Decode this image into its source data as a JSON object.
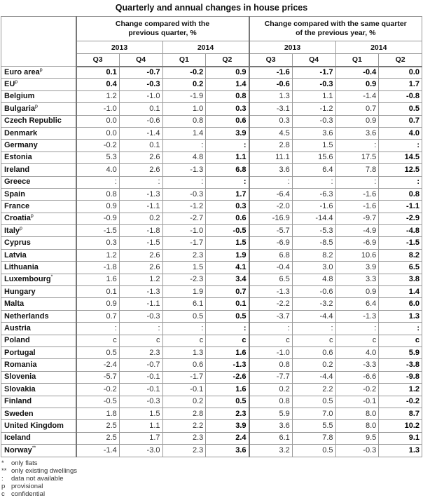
{
  "title": "Quarterly and annual changes in house prices",
  "headers": {
    "group1": "Change compared with the previous quarter, %",
    "group2": "Change compared with the same quarter of the previous year, %",
    "years": [
      "2013",
      "2014",
      "2013",
      "2014"
    ],
    "quarters": [
      "Q3",
      "Q4",
      "Q1",
      "Q2",
      "Q3",
      "Q4",
      "Q1",
      "Q2"
    ]
  },
  "rows": [
    {
      "country": "Euro area",
      "sup": "p",
      "bold": true,
      "values": [
        "0.1",
        "-0.7",
        "-0.2",
        "0.9",
        "-1.6",
        "-1.7",
        "-0.4",
        "0.0"
      ]
    },
    {
      "country": "EU",
      "sup": "p",
      "bold": true,
      "values": [
        "0.4",
        "-0.3",
        "0.2",
        "1.4",
        "-0.6",
        "-0.3",
        "0.9",
        "1.7"
      ]
    },
    {
      "country": "Belgium",
      "sup": "",
      "values": [
        "1.2",
        "-1.0",
        "-1.9",
        "0.8",
        "1.3",
        "1.1",
        "-1.4",
        "-0.8"
      ]
    },
    {
      "country": "Bulgaria",
      "sup": "p",
      "values": [
        "-1.0",
        "0.1",
        "1.0",
        "0.3",
        "-3.1",
        "-1.2",
        "0.7",
        "0.5"
      ]
    },
    {
      "country": "Czech Republic",
      "sup": "",
      "values": [
        "0.0",
        "-0.6",
        "0.8",
        "0.6",
        "0.3",
        "-0.3",
        "0.9",
        "0.7"
      ]
    },
    {
      "country": "Denmark",
      "sup": "",
      "values": [
        "0.0",
        "-1.4",
        "1.4",
        "3.9",
        "4.5",
        "3.6",
        "3.6",
        "4.0"
      ]
    },
    {
      "country": "Germany",
      "sup": "",
      "values": [
        "-0.2",
        "0.1",
        ":",
        ":",
        "2.8",
        "1.5",
        ":",
        ":"
      ]
    },
    {
      "country": "Estonia",
      "sup": "",
      "values": [
        "5.3",
        "2.6",
        "4.8",
        "1.1",
        "11.1",
        "15.6",
        "17.5",
        "14.5"
      ]
    },
    {
      "country": "Ireland",
      "sup": "",
      "values": [
        "4.0",
        "2.6",
        "-1.3",
        "6.8",
        "3.6",
        "6.4",
        "7.8",
        "12.5"
      ]
    },
    {
      "country": "Greece",
      "sup": "",
      "values": [
        ":",
        ":",
        ":",
        ":",
        ":",
        ":",
        ":",
        ":"
      ]
    },
    {
      "country": "Spain",
      "sup": "",
      "values": [
        "0.8",
        "-1.3",
        "-0.3",
        "1.7",
        "-6.4",
        "-6.3",
        "-1.6",
        "0.8"
      ]
    },
    {
      "country": "France",
      "sup": "",
      "values": [
        "0.9",
        "-1.1",
        "-1.2",
        "0.3",
        "-2.0",
        "-1.6",
        "-1.6",
        "-1.1"
      ]
    },
    {
      "country": "Croatia",
      "sup": "p",
      "values": [
        "-0.9",
        "0.2",
        "-2.7",
        "0.6",
        "-16.9",
        "-14.4",
        "-9.7",
        "-2.9"
      ]
    },
    {
      "country": "Italy",
      "sup": "p",
      "values": [
        "-1.5",
        "-1.8",
        "-1.0",
        "-0.5",
        "-5.7",
        "-5.3",
        "-4.9",
        "-4.8"
      ]
    },
    {
      "country": "Cyprus",
      "sup": "",
      "values": [
        "0.3",
        "-1.5",
        "-1.7",
        "1.5",
        "-6.9",
        "-8.5",
        "-6.9",
        "-1.5"
      ]
    },
    {
      "country": "Latvia",
      "sup": "",
      "values": [
        "1.2",
        "2.6",
        "2.3",
        "1.9",
        "6.8",
        "8.2",
        "10.6",
        "8.2"
      ]
    },
    {
      "country": "Lithuania",
      "sup": "",
      "values": [
        "-1.8",
        "2.6",
        "1.5",
        "4.1",
        "-0.4",
        "3.0",
        "3.9",
        "6.5"
      ]
    },
    {
      "country": "Luxembourg",
      "sup": "*",
      "values": [
        "1.6",
        "1.2",
        "-2.3",
        "3.4",
        "6.5",
        "4.8",
        "3.3",
        "3.8"
      ]
    },
    {
      "country": "Hungary",
      "sup": "",
      "values": [
        "0.1",
        "-1.3",
        "1.9",
        "0.7",
        "-1.3",
        "-0.6",
        "0.9",
        "1.4"
      ]
    },
    {
      "country": "Malta",
      "sup": "",
      "values": [
        "0.9",
        "-1.1",
        "6.1",
        "0.1",
        "-2.2",
        "-3.2",
        "6.4",
        "6.0"
      ]
    },
    {
      "country": "Netherlands",
      "sup": "",
      "values": [
        "0.7",
        "-0.3",
        "0.5",
        "0.5",
        "-3.7",
        "-4.4",
        "-1.3",
        "1.3"
      ]
    },
    {
      "country": "Austria",
      "sup": "",
      "values": [
        ":",
        ":",
        ":",
        ":",
        ":",
        ":",
        ":",
        ":"
      ]
    },
    {
      "country": "Poland",
      "sup": "",
      "values": [
        "c",
        "c",
        "c",
        "c",
        "c",
        "c",
        "c",
        "c"
      ]
    },
    {
      "country": "Portugal",
      "sup": "",
      "values": [
        "0.5",
        "2.3",
        "1.3",
        "1.6",
        "-1.0",
        "0.6",
        "4.0",
        "5.9"
      ]
    },
    {
      "country": "Romania",
      "sup": "",
      "values": [
        "-2.4",
        "-0.7",
        "0.6",
        "-1.3",
        "0.8",
        "0.2",
        "-3.3",
        "-3.8"
      ]
    },
    {
      "country": "Slovenia",
      "sup": "",
      "values": [
        "-5.7",
        "-0.1",
        "-1.7",
        "-2.6",
        "-7.7",
        "-4.4",
        "-6.6",
        "-9.8"
      ]
    },
    {
      "country": "Slovakia",
      "sup": "",
      "values": [
        "-0.2",
        "-0.1",
        "-0.1",
        "1.6",
        "0.2",
        "2.2",
        "-0.2",
        "1.2"
      ]
    },
    {
      "country": "Finland",
      "sup": "",
      "values": [
        "-0.5",
        "-0.3",
        "0.2",
        "0.5",
        "0.8",
        "0.5",
        "-0.1",
        "-0.2"
      ]
    },
    {
      "country": "Sweden",
      "sup": "",
      "values": [
        "1.8",
        "1.5",
        "2.8",
        "2.3",
        "5.9",
        "7.0",
        "8.0",
        "8.7"
      ]
    },
    {
      "country": "United Kingdom",
      "sup": "",
      "values": [
        "2.5",
        "1.1",
        "2.2",
        "3.9",
        "3.6",
        "5.5",
        "8.0",
        "10.2"
      ]
    },
    {
      "country": "Iceland",
      "sup": "",
      "values": [
        "2.5",
        "1.7",
        "2.3",
        "2.4",
        "6.1",
        "7.8",
        "9.5",
        "9.1"
      ]
    },
    {
      "country": "Norway",
      "sup": "**",
      "values": [
        "-1.4",
        "-3.0",
        "2.3",
        "3.6",
        "3.2",
        "0.5",
        "-0.3",
        "1.3"
      ]
    }
  ],
  "notes": [
    {
      "symbol": "*",
      "text": "only flats"
    },
    {
      "symbol": "**",
      "text": "only existing dwellings"
    },
    {
      "symbol": ":",
      "text": "data not available"
    },
    {
      "symbol": "p",
      "text": "provisional"
    },
    {
      "symbol": "c",
      "text": "confidential"
    }
  ]
}
